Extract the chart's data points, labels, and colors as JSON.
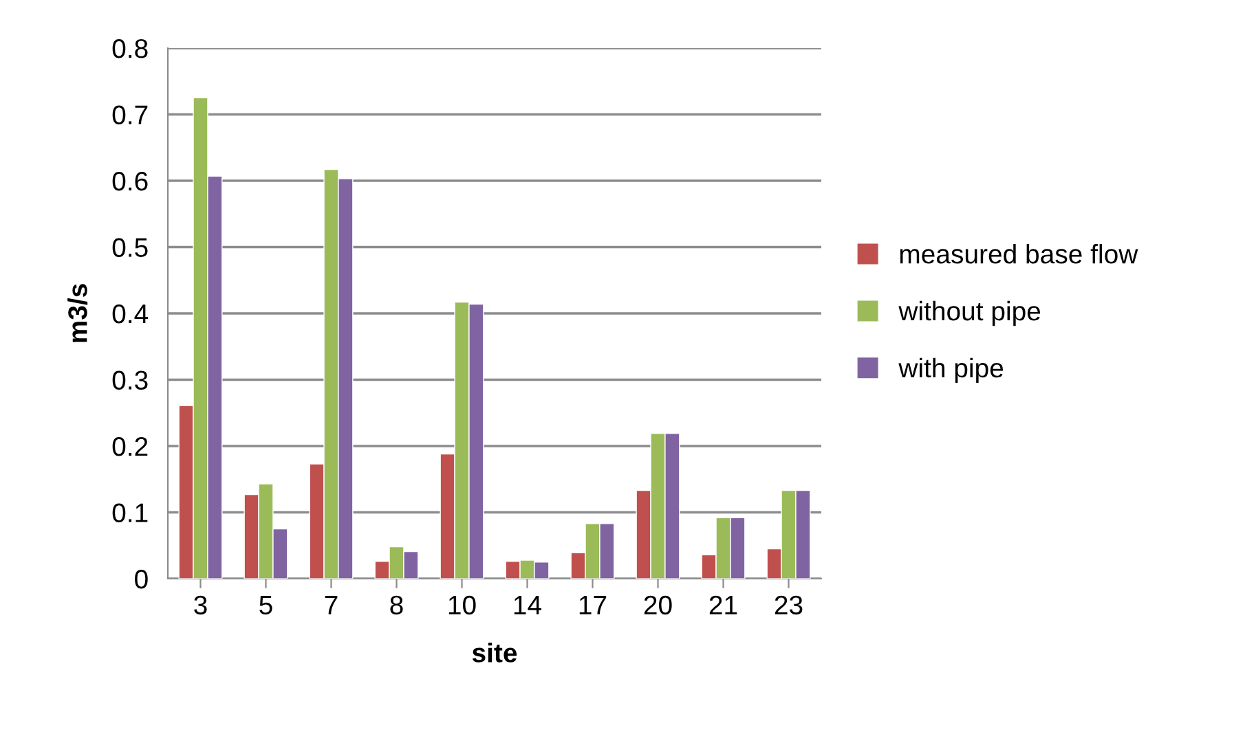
{
  "chart_data": {
    "type": "bar",
    "xlabel": "site",
    "ylabel": "m3/s",
    "categories": [
      "3",
      "5",
      "7",
      "8",
      "10",
      "14",
      "17",
      "20",
      "21",
      "23"
    ],
    "series": [
      {
        "name": "measured base flow",
        "color": "#c0504d",
        "values": [
          0.261,
          0.127,
          0.173,
          0.026,
          0.188,
          0.026,
          0.039,
          0.133,
          0.036,
          0.045
        ]
      },
      {
        "name": "without pipe",
        "color": "#9bbb59",
        "values": [
          0.725,
          0.143,
          0.617,
          0.048,
          0.417,
          0.028,
          0.083,
          0.219,
          0.092,
          0.133
        ]
      },
      {
        "name": "with pipe",
        "color": "#8064a2",
        "values": [
          0.607,
          0.075,
          0.603,
          0.041,
          0.414,
          0.025,
          0.083,
          0.219,
          0.092,
          0.133
        ]
      }
    ],
    "ylim": [
      0,
      0.8
    ],
    "yticks": [
      0,
      0.1,
      0.2,
      0.3,
      0.4,
      0.5,
      0.6,
      0.7,
      0.8
    ],
    "grid": "y",
    "legend": "right"
  }
}
